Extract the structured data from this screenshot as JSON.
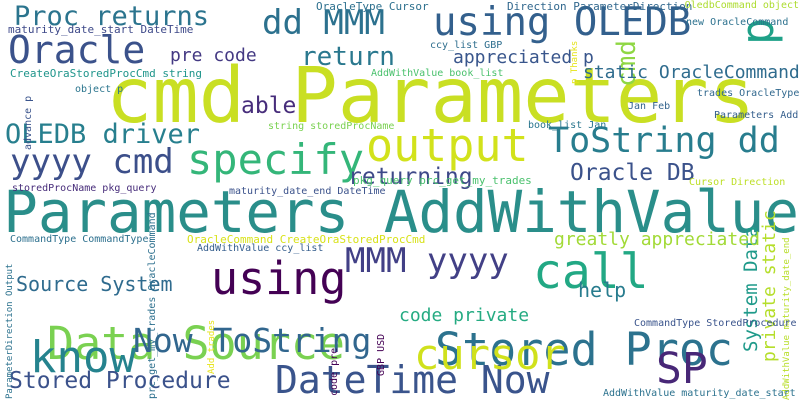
{
  "words": [
    {
      "text": "cmd Parameters",
      "color": "#c9df23"
    },
    {
      "text": "Parameters AddWithValue",
      "color": "#2a8e8a"
    },
    {
      "text": "using OLEDB",
      "color": "#33608d"
    },
    {
      "text": "dd MMM",
      "color": "#2c718e"
    },
    {
      "text": "output",
      "color": "#d2e21b"
    },
    {
      "text": "ToString dd",
      "color": "#287d8e"
    },
    {
      "text": "specify",
      "color": "#34b679"
    },
    {
      "text": "yyyy cmd",
      "color": "#3c4f8a"
    },
    {
      "text": "Oracle",
      "color": "#3b528b"
    },
    {
      "text": "p",
      "color": "#1fa188"
    },
    {
      "text": "Proc returns",
      "color": "#2b748e"
    },
    {
      "text": "Data Source",
      "color": "#7ad151"
    },
    {
      "text": "Stored Proc",
      "color": "#2c728e"
    },
    {
      "text": "DateTime Now",
      "color": "#3a548c"
    },
    {
      "text": "know",
      "color": "#25838e"
    },
    {
      "text": "Now ToString",
      "color": "#31668e"
    },
    {
      "text": "using",
      "color": "#440154"
    },
    {
      "text": "call",
      "color": "#22a884"
    },
    {
      "text": "cursor",
      "color": "#d0e11c"
    },
    {
      "text": "SP",
      "color": "#482777"
    },
    {
      "text": "MMM yyyy",
      "color": "#424086"
    },
    {
      "text": "OLEDB driver",
      "color": "#277f8e"
    },
    {
      "text": "return",
      "color": "#2a788e"
    },
    {
      "text": "cmd",
      "color": "#8fd744"
    },
    {
      "text": "Oracle DB",
      "color": "#3b528b"
    },
    {
      "text": "able",
      "color": "#472d7b"
    },
    {
      "text": "appreciated p",
      "color": "#39568c"
    },
    {
      "text": "static OracleCommand",
      "color": "#2f6c8e"
    },
    {
      "text": "returning",
      "color": "#3e4989"
    },
    {
      "text": "Source System",
      "color": "#2f6b8e"
    },
    {
      "text": "help",
      "color": "#287c8e"
    },
    {
      "text": "code private",
      "color": "#25ab82"
    },
    {
      "text": "Stored Procedure",
      "color": "#3b528b"
    },
    {
      "text": "System Data",
      "color": "#1f9a8a"
    },
    {
      "text": "private static",
      "color": "#b5de2b"
    },
    {
      "text": "greatly appreciated",
      "color": "#a2da37"
    },
    {
      "text": "pre code",
      "color": "#443983"
    },
    {
      "text": "maturity_date_start DateTime",
      "color": "#3e4989"
    },
    {
      "text": "OracleType Cursor",
      "color": "#2d708e"
    },
    {
      "text": "Direction ParameterDirection",
      "color": "#30678d"
    },
    {
      "text": "OledbCommand object",
      "color": "#addc30"
    },
    {
      "text": "new OracleCommand",
      "color": "#2c718e"
    },
    {
      "text": "ccy_list GBP",
      "color": "#2e6e8e"
    },
    {
      "text": "p Thanks",
      "color": "#e5e419"
    },
    {
      "text": "CreateOraStoredProcCmd string",
      "color": "#1f958b"
    },
    {
      "text": "AddWithValue book_list",
      "color": "#4ac16d"
    },
    {
      "text": "advance p",
      "color": "#3a548c"
    },
    {
      "text": "object p",
      "color": "#2b758e"
    },
    {
      "text": "Jan Feb",
      "color": "#33638d"
    },
    {
      "text": "trades OracleType",
      "color": "#31688e"
    },
    {
      "text": "Parameters Add",
      "color": "#355f8d"
    },
    {
      "text": "string storedProcName",
      "color": "#7ad151"
    },
    {
      "text": "book_list Jan",
      "color": "#2a768e"
    },
    {
      "text": "storedProcName pkg_query",
      "color": "#472c7a"
    },
    {
      "text": "pkg_query prc_get_my_trades",
      "color": "#4ac16d"
    },
    {
      "text": "Cursor Direction",
      "color": "#bddf26"
    },
    {
      "text": "maturity_date_end DateTime",
      "color": "#3b528b"
    },
    {
      "text": "OracleCommand CreateOraStoredProcCmd",
      "color": "#d8e219"
    },
    {
      "text": "CommandType CommandType",
      "color": "#2d708e"
    },
    {
      "text": "AddWithValue ccy_list",
      "color": "#355e8d"
    },
    {
      "text": "AddWithValue maturity_date_end",
      "color": "#b8de29"
    },
    {
      "text": "Add trades",
      "color": "#e7e419"
    },
    {
      "text": "GBP USD",
      "color": "#440154"
    },
    {
      "text": "CommandType StoredProcedure",
      "color": "#3a548c"
    },
    {
      "text": "ParameterDirection Output",
      "color": "#2c728e"
    },
    {
      "text": "code pre",
      "color": "#450457"
    },
    {
      "text": "prc_get_my_trades OracleCommand",
      "color": "#2d708e"
    },
    {
      "text": "AddWithValue maturity_date_start",
      "color": "#2c728e"
    }
  ]
}
